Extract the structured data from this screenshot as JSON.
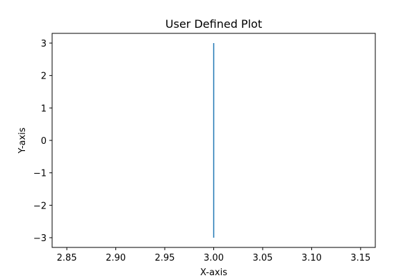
{
  "chart_data": {
    "type": "line",
    "title": "User Defined Plot",
    "xlabel": "X-axis",
    "ylabel": "Y-axis",
    "xlim": [
      2.835,
      3.165
    ],
    "ylim": [
      -3.3,
      3.3
    ],
    "xticks": [
      2.85,
      2.9,
      2.95,
      3.0,
      3.05,
      3.1,
      3.15
    ],
    "xtick_labels": [
      "2.85",
      "2.90",
      "2.95",
      "3.00",
      "3.05",
      "3.10",
      "3.15"
    ],
    "yticks": [
      -3,
      -2,
      -1,
      0,
      1,
      2,
      3
    ],
    "ytick_labels": [
      "−3",
      "−2",
      "−1",
      "0",
      "1",
      "2",
      "3"
    ],
    "grid": false,
    "series": [
      {
        "color": "#1f77b4",
        "x": [
          3,
          3
        ],
        "y": [
          -3,
          3
        ]
      }
    ]
  }
}
